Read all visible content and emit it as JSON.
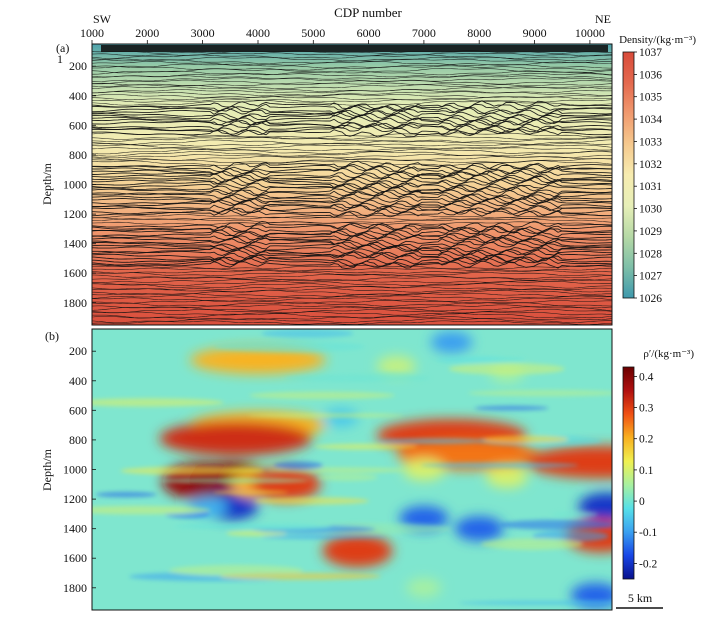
{
  "chart_data": [
    {
      "panel_label": "(a)",
      "type": "heatmap",
      "top_axis_title": "CDP number",
      "x_ticks": [
        1000,
        2000,
        3000,
        4000,
        5000,
        6000,
        7000,
        8000,
        9000,
        10000
      ],
      "x_range": [
        1000,
        10400
      ],
      "left_label": "SW",
      "right_label": "NE",
      "ylabel": "Depth/m",
      "y_ticks": [
        200,
        400,
        600,
        800,
        1000,
        1200,
        1400,
        1600,
        1800
      ],
      "y_range": [
        50,
        1950
      ],
      "y_tick_prefix": "1",
      "y_tick_prefix_depth": 150,
      "colorbar": {
        "title": "Density/(kg·m⁻³)",
        "min": 1026,
        "max": 1037,
        "ticks": [
          1026,
          1027,
          1028,
          1029,
          1030,
          1031,
          1032,
          1033,
          1034,
          1035,
          1036,
          1037
        ],
        "colors": [
          "#3f99ad",
          "#7ebfa8",
          "#b6d9a6",
          "#e7efb8",
          "#f7ecb0",
          "#f6c98e",
          "#f09a6f",
          "#e4694e",
          "#d84a3a"
        ]
      },
      "background_profile": [
        {
          "depth": 50,
          "density": 1026.3
        },
        {
          "depth": 200,
          "density": 1028.0
        },
        {
          "depth": 450,
          "density": 1030.0
        },
        {
          "depth": 750,
          "density": 1031.3
        },
        {
          "depth": 1000,
          "density": 1032.5
        },
        {
          "depth": 1300,
          "density": 1034.3
        },
        {
          "depth": 1600,
          "density": 1035.8
        },
        {
          "depth": 1950,
          "density": 1036.8
        }
      ]
    },
    {
      "panel_label": "(b)",
      "type": "heatmap",
      "ylabel": "Depth/m",
      "y_ticks": [
        200,
        400,
        600,
        800,
        1000,
        1200,
        1400,
        1600,
        1800
      ],
      "y_range": [
        50,
        1950
      ],
      "x_range": [
        1000,
        10400
      ],
      "colorbar": {
        "title": "ρ′/(kg·m⁻³)",
        "min": -0.25,
        "max": 0.43,
        "ticks": [
          -0.2,
          -0.1,
          0,
          0.1,
          0.2,
          0.3,
          0.4
        ],
        "tick_labels": [
          "-0.2",
          "-0.1",
          "0",
          "0.1",
          "0.2",
          "0.3",
          "0.4"
        ],
        "colors": [
          "#08108c",
          "#1846e6",
          "#3aa0f0",
          "#56e0e8",
          "#a8f0a0",
          "#f0f050",
          "#f8b020",
          "#f05014",
          "#b01010",
          "#6a0000"
        ]
      },
      "anomalies": [
        {
          "cdp": 3000,
          "depth": 1080,
          "value": 0.38
        },
        {
          "cdp": 3500,
          "depth": 1080,
          "value": 0.4
        },
        {
          "cdp": 3500,
          "depth": 1250,
          "value": -0.2
        },
        {
          "cdp": 3100,
          "depth": 1250,
          "value": -0.08
        },
        {
          "cdp": 4000,
          "depth": 260,
          "value": 0.2
        },
        {
          "cdp": 4000,
          "depth": 700,
          "value": 0.2
        },
        {
          "cdp": 3600,
          "depth": 790,
          "value": 0.32
        },
        {
          "cdp": 4000,
          "depth": 1100,
          "value": 0.2
        },
        {
          "cdp": 4500,
          "depth": 1100,
          "value": 0.3
        },
        {
          "cdp": 5800,
          "depth": 1550,
          "value": 0.3
        },
        {
          "cdp": 7500,
          "depth": 770,
          "value": 0.3
        },
        {
          "cdp": 7800,
          "depth": 900,
          "value": 0.25
        },
        {
          "cdp": 7000,
          "depth": 1330,
          "value": -0.15
        },
        {
          "cdp": 8000,
          "depth": 1400,
          "value": -0.15
        },
        {
          "cdp": 10200,
          "depth": 950,
          "value": 0.3
        },
        {
          "cdp": 10200,
          "depth": 1450,
          "value": 0.3
        },
        {
          "cdp": 10300,
          "depth": 1250,
          "value": -0.2
        },
        {
          "cdp": 10100,
          "depth": 1850,
          "value": -0.15
        },
        {
          "cdp": 7000,
          "depth": 1000,
          "value": 0.1
        },
        {
          "cdp": 8500,
          "depth": 1050,
          "value": 0.1
        },
        {
          "cdp": 6500,
          "depth": 300,
          "value": 0.08
        },
        {
          "cdp": 8500,
          "depth": 350,
          "value": 0.05
        },
        {
          "cdp": 7500,
          "depth": 140,
          "value": -0.1
        },
        {
          "cdp": 5500,
          "depth": 650,
          "value": -0.05
        },
        {
          "cdp": 7000,
          "depth": 1800,
          "value": 0.05
        }
      ],
      "scale_bar_label": "5 km"
    }
  ]
}
